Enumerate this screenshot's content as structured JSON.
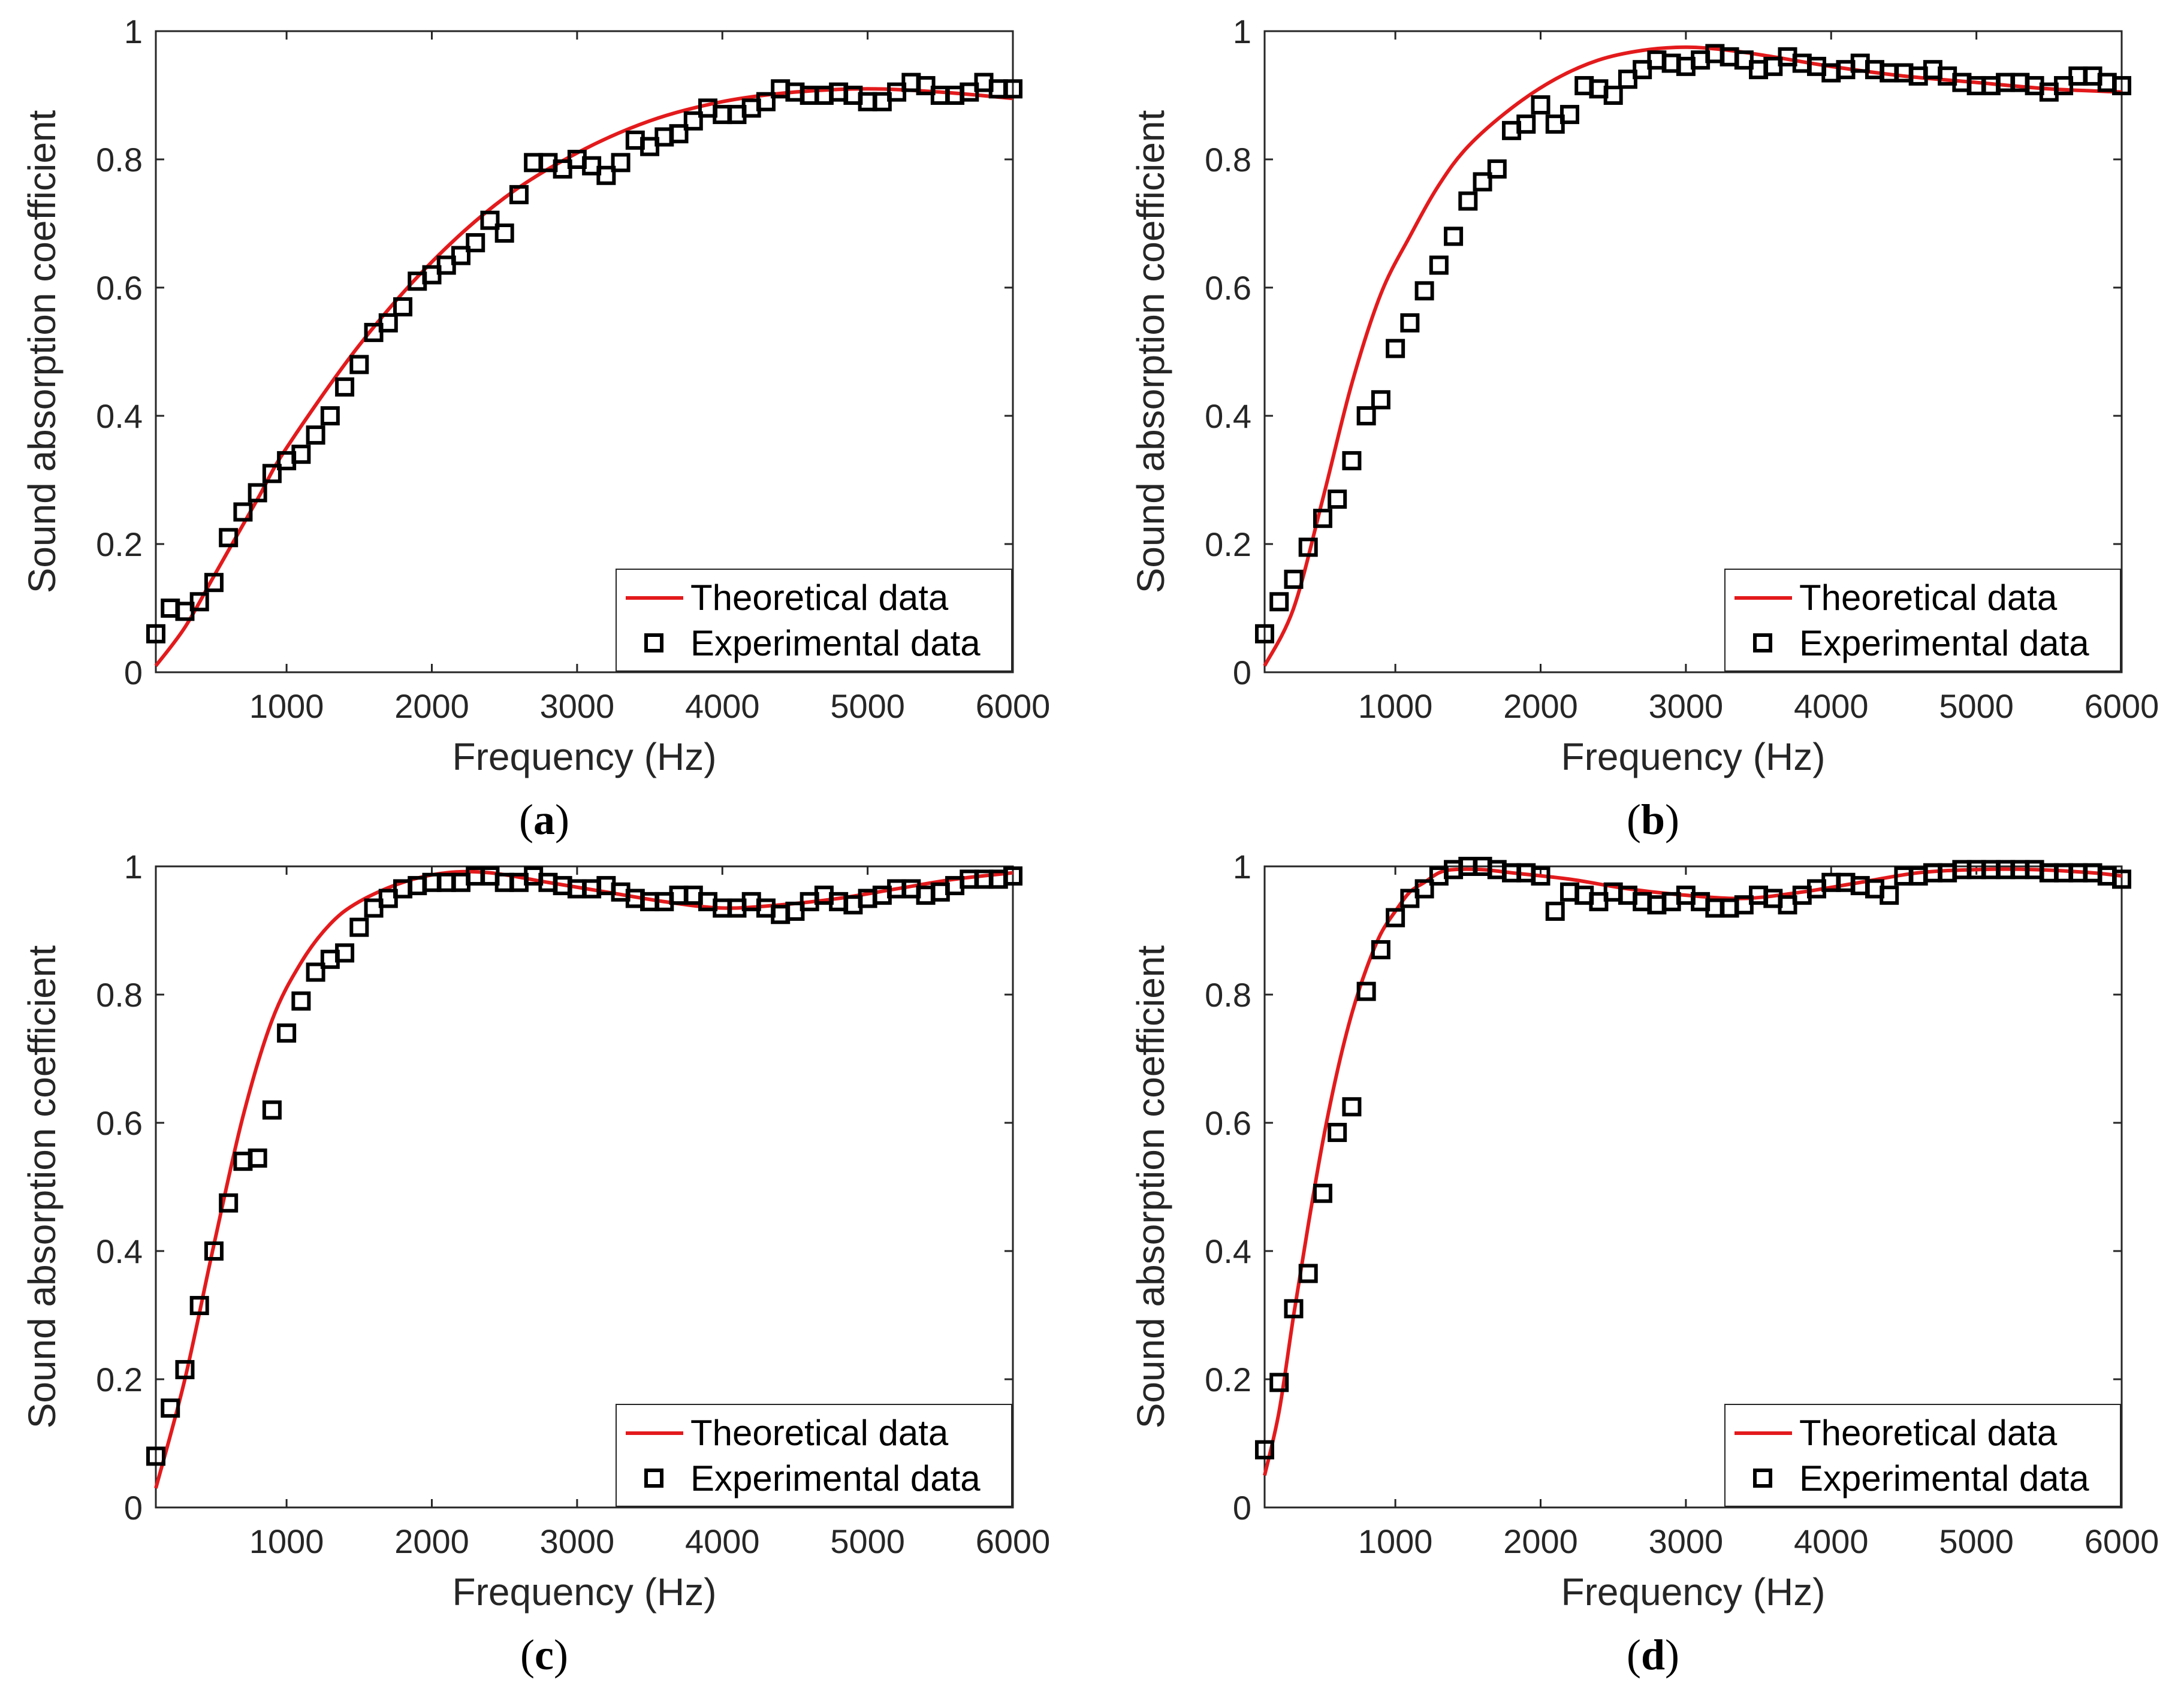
{
  "figure": {
    "theory_color": "#e31a1c",
    "marker_color": "#000000",
    "axis_color": "#262626",
    "background": "#ffffff"
  },
  "chart_data": [
    {
      "type": "line+scatter",
      "panel_label": "a",
      "xlabel": "Frequency (Hz)",
      "ylabel": "Sound absorption coefficient",
      "xlim": [
        100,
        6000
      ],
      "ylim": [
        0,
        1
      ],
      "xticks": [
        1000,
        2000,
        3000,
        4000,
        5000,
        6000
      ],
      "yticks": [
        0,
        0.2,
        0.4,
        0.6,
        0.8,
        1
      ],
      "ytick_labels": [
        "0",
        "0.2",
        "0.4",
        "0.6",
        "0.8",
        "1"
      ],
      "legend": {
        "position": "bottom-right",
        "entries": [
          "Theoretical data",
          "Experimental data"
        ]
      },
      "series": [
        {
          "name": "Theoretical data",
          "kind": "line",
          "x": [
            100,
            300,
            500,
            800,
            1000,
            1500,
            2000,
            2500,
            3000,
            3500,
            4000,
            4500,
            5000,
            5500,
            6000
          ],
          "y": [
            0.01,
            0.07,
            0.15,
            0.27,
            0.35,
            0.51,
            0.64,
            0.74,
            0.81,
            0.86,
            0.89,
            0.905,
            0.91,
            0.905,
            0.895
          ]
        },
        {
          "name": "Experimental data",
          "kind": "scatter",
          "x": [
            100,
            200,
            300,
            400,
            500,
            600,
            700,
            800,
            900,
            1000,
            1100,
            1200,
            1300,
            1400,
            1500,
            1600,
            1700,
            1800,
            1900,
            2000,
            2100,
            2200,
            2300,
            2400,
            2500,
            2600,
            2700,
            2800,
            2900,
            3000,
            3100,
            3200,
            3300,
            3400,
            3500,
            3600,
            3700,
            3800,
            3900,
            4000,
            4100,
            4200,
            4300,
            4400,
            4500,
            4600,
            4700,
            4800,
            4900,
            5000,
            5100,
            5200,
            5300,
            5400,
            5500,
            5600,
            5700,
            5800,
            5900,
            6000
          ],
          "y": [
            0.06,
            0.1,
            0.095,
            0.11,
            0.14,
            0.21,
            0.25,
            0.28,
            0.31,
            0.33,
            0.34,
            0.37,
            0.4,
            0.445,
            0.48,
            0.53,
            0.545,
            0.57,
            0.61,
            0.62,
            0.635,
            0.65,
            0.67,
            0.705,
            0.685,
            0.745,
            0.795,
            0.795,
            0.785,
            0.8,
            0.79,
            0.775,
            0.795,
            0.83,
            0.82,
            0.835,
            0.84,
            0.86,
            0.88,
            0.87,
            0.87,
            0.88,
            0.89,
            0.91,
            0.905,
            0.9,
            0.9,
            0.905,
            0.9,
            0.89,
            0.89,
            0.905,
            0.92,
            0.915,
            0.9,
            0.9,
            0.905,
            0.92,
            0.91,
            0.91
          ]
        }
      ]
    },
    {
      "type": "line+scatter",
      "panel_label": "b",
      "xlabel": "Frequency (Hz)",
      "ylabel": "Sound absorption coefficient",
      "xlim": [
        100,
        6000
      ],
      "ylim": [
        0,
        1
      ],
      "xticks": [
        1000,
        2000,
        3000,
        4000,
        5000,
        6000
      ],
      "yticks": [
        0,
        0.2,
        0.4,
        0.6,
        0.8,
        1
      ],
      "ytick_labels": [
        "0",
        "0.2",
        "0.4",
        "0.6",
        "0.8",
        "1"
      ],
      "legend": {
        "position": "bottom-right",
        "entries": [
          "Theoretical data",
          "Experimental data"
        ]
      },
      "series": [
        {
          "name": "Theoretical data",
          "kind": "line",
          "x": [
            100,
            300,
            500,
            700,
            900,
            1100,
            1300,
            1500,
            1800,
            2100,
            2400,
            2700,
            3000,
            3300,
            3600,
            4000,
            4500,
            5000,
            5500,
            6000
          ],
          "y": [
            0.01,
            0.1,
            0.27,
            0.45,
            0.59,
            0.68,
            0.76,
            0.82,
            0.88,
            0.925,
            0.955,
            0.97,
            0.975,
            0.97,
            0.96,
            0.945,
            0.93,
            0.92,
            0.91,
            0.905
          ]
        },
        {
          "name": "Experimental data",
          "kind": "scatter",
          "x": [
            100,
            200,
            300,
            400,
            500,
            600,
            700,
            800,
            900,
            1000,
            1100,
            1200,
            1300,
            1400,
            1500,
            1600,
            1700,
            1800,
            1900,
            2000,
            2100,
            2200,
            2300,
            2400,
            2500,
            2600,
            2700,
            2800,
            2900,
            3000,
            3100,
            3200,
            3300,
            3400,
            3500,
            3600,
            3700,
            3800,
            3900,
            4000,
            4100,
            4200,
            4300,
            4400,
            4500,
            4600,
            4700,
            4800,
            4900,
            5000,
            5100,
            5200,
            5300,
            5400,
            5500,
            5600,
            5700,
            5800,
            5900,
            6000
          ],
          "y": [
            0.06,
            0.11,
            0.145,
            0.195,
            0.24,
            0.27,
            0.33,
            0.4,
            0.425,
            0.505,
            0.545,
            0.595,
            0.635,
            0.68,
            0.735,
            0.765,
            0.785,
            0.845,
            0.855,
            0.885,
            0.855,
            0.87,
            0.915,
            0.91,
            0.9,
            0.925,
            0.94,
            0.955,
            0.95,
            0.945,
            0.955,
            0.965,
            0.96,
            0.955,
            0.94,
            0.945,
            0.96,
            0.95,
            0.945,
            0.935,
            0.94,
            0.95,
            0.94,
            0.935,
            0.935,
            0.93,
            0.94,
            0.93,
            0.92,
            0.915,
            0.915,
            0.92,
            0.92,
            0.915,
            0.905,
            0.915,
            0.93,
            0.93,
            0.92,
            0.915
          ]
        }
      ]
    },
    {
      "type": "line+scatter",
      "panel_label": "c",
      "xlabel": "Frequency (Hz)",
      "ylabel": "Sound absorption coefficient",
      "xlim": [
        100,
        6000
      ],
      "ylim": [
        0,
        1
      ],
      "xticks": [
        1000,
        2000,
        3000,
        4000,
        5000,
        6000
      ],
      "yticks": [
        0,
        0.2,
        0.4,
        0.6,
        0.8,
        1
      ],
      "ytick_labels": [
        "0",
        "0.2",
        "0.4",
        "0.6",
        "0.8",
        "1"
      ],
      "legend": {
        "position": "bottom-right",
        "entries": [
          "Theoretical data",
          "Experimental data"
        ]
      },
      "series": [
        {
          "name": "Theoretical data",
          "kind": "line",
          "x": [
            100,
            300,
            500,
            700,
            900,
            1100,
            1300,
            1500,
            1800,
            2100,
            2400,
            2800,
            3200,
            3600,
            4000,
            4400,
            4800,
            5200,
            5600,
            6000
          ],
          "y": [
            0.03,
            0.2,
            0.41,
            0.61,
            0.76,
            0.85,
            0.91,
            0.945,
            0.975,
            0.99,
            0.99,
            0.975,
            0.96,
            0.945,
            0.935,
            0.94,
            0.95,
            0.965,
            0.98,
            0.99
          ]
        },
        {
          "name": "Experimental data",
          "kind": "scatter",
          "x": [
            100,
            200,
            300,
            400,
            500,
            600,
            700,
            800,
            900,
            1000,
            1100,
            1200,
            1300,
            1400,
            1500,
            1600,
            1700,
            1800,
            1900,
            2000,
            2100,
            2200,
            2300,
            2400,
            2500,
            2600,
            2700,
            2800,
            2900,
            3000,
            3100,
            3200,
            3300,
            3400,
            3500,
            3600,
            3700,
            3800,
            3900,
            4000,
            4100,
            4200,
            4300,
            4400,
            4500,
            4600,
            4700,
            4800,
            4900,
            5000,
            5100,
            5200,
            5300,
            5400,
            5500,
            5600,
            5700,
            5800,
            5900,
            6000
          ],
          "y": [
            0.08,
            0.155,
            0.215,
            0.315,
            0.4,
            0.475,
            0.54,
            0.545,
            0.62,
            0.74,
            0.79,
            0.835,
            0.855,
            0.865,
            0.905,
            0.935,
            0.95,
            0.965,
            0.97,
            0.975,
            0.975,
            0.975,
            0.985,
            0.985,
            0.975,
            0.975,
            0.985,
            0.975,
            0.97,
            0.965,
            0.965,
            0.97,
            0.96,
            0.95,
            0.945,
            0.945,
            0.955,
            0.955,
            0.945,
            0.935,
            0.935,
            0.945,
            0.935,
            0.925,
            0.93,
            0.945,
            0.955,
            0.945,
            0.94,
            0.95,
            0.955,
            0.965,
            0.965,
            0.955,
            0.96,
            0.97,
            0.98,
            0.98,
            0.98,
            0.985
          ]
        }
      ]
    },
    {
      "type": "line+scatter",
      "panel_label": "d",
      "xlabel": "Frequency (Hz)",
      "ylabel": "Sound absorption coefficient",
      "xlim": [
        100,
        6000
      ],
      "ylim": [
        0,
        1
      ],
      "xticks": [
        1000,
        2000,
        3000,
        4000,
        5000,
        6000
      ],
      "yticks": [
        0,
        0.2,
        0.4,
        0.6,
        0.8,
        1
      ],
      "ytick_labels": [
        "0",
        "0.2",
        "0.4",
        "0.6",
        "0.8",
        "1"
      ],
      "legend": {
        "position": "bottom-right",
        "entries": [
          "Theoretical data",
          "Experimental data"
        ]
      },
      "series": [
        {
          "name": "Theoretical data",
          "kind": "line",
          "x": [
            100,
            200,
            300,
            400,
            500,
            600,
            700,
            800,
            900,
            1000,
            1100,
            1200,
            1300,
            1400,
            1600,
            1800,
            2200,
            2600,
            3000,
            3400,
            3800,
            4200,
            4600,
            5000,
            5400,
            5800,
            6000
          ],
          "y": [
            0.05,
            0.15,
            0.3,
            0.44,
            0.57,
            0.68,
            0.77,
            0.84,
            0.895,
            0.93,
            0.96,
            0.975,
            0.99,
            0.995,
            0.995,
            0.99,
            0.98,
            0.965,
            0.955,
            0.95,
            0.96,
            0.975,
            0.99,
            0.995,
            0.995,
            0.99,
            0.985
          ]
        },
        {
          "name": "Experimental data",
          "kind": "scatter",
          "x": [
            100,
            200,
            300,
            400,
            500,
            600,
            700,
            800,
            900,
            1000,
            1100,
            1200,
            1300,
            1400,
            1500,
            1600,
            1700,
            1800,
            1900,
            2000,
            2100,
            2200,
            2300,
            2400,
            2500,
            2600,
            2700,
            2800,
            2900,
            3000,
            3100,
            3200,
            3300,
            3400,
            3500,
            3600,
            3700,
            3800,
            3900,
            4000,
            4100,
            4200,
            4300,
            4400,
            4500,
            4600,
            4700,
            4800,
            4900,
            5000,
            5100,
            5200,
            5300,
            5400,
            5500,
            5600,
            5700,
            5800,
            5900,
            6000
          ],
          "y": [
            0.09,
            0.195,
            0.31,
            0.365,
            0.49,
            0.585,
            0.625,
            0.805,
            0.87,
            0.92,
            0.95,
            0.965,
            0.985,
            0.995,
            1.0,
            1.0,
            0.995,
            0.99,
            0.99,
            0.985,
            0.93,
            0.96,
            0.955,
            0.945,
            0.96,
            0.955,
            0.945,
            0.94,
            0.945,
            0.955,
            0.945,
            0.935,
            0.935,
            0.94,
            0.955,
            0.95,
            0.94,
            0.955,
            0.965,
            0.975,
            0.975,
            0.97,
            0.965,
            0.955,
            0.985,
            0.985,
            0.99,
            0.99,
            0.995,
            0.995,
            0.995,
            0.995,
            0.995,
            0.995,
            0.99,
            0.99,
            0.99,
            0.99,
            0.985,
            0.98
          ]
        }
      ]
    }
  ]
}
